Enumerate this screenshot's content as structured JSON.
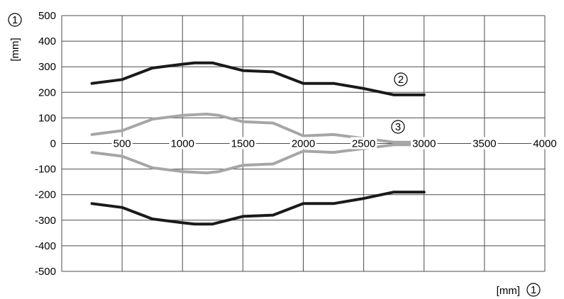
{
  "chart_data": {
    "type": "line",
    "title": "",
    "xlabel": "[mm]",
    "ylabel": "[mm]",
    "axis_marker": "1",
    "xlim": [
      0,
      4000
    ],
    "ylim": [
      -500,
      500
    ],
    "x_ticks": [
      500,
      1000,
      1500,
      2000,
      2500,
      3000,
      3500,
      4000
    ],
    "y_ticks": [
      500,
      400,
      300,
      200,
      100,
      0,
      -100,
      -200,
      -300,
      -400,
      -500
    ],
    "grid": true,
    "series": [
      {
        "name": "2",
        "color": "#1a1a1a",
        "x": [
          250,
          500,
          750,
          1000,
          1100,
          1250,
          1500,
          1750,
          2000,
          2250,
          2500,
          2750,
          3000
        ],
        "upper": [
          235,
          250,
          295,
          310,
          315,
          315,
          285,
          280,
          235,
          235,
          215,
          190,
          190
        ],
        "lower": [
          -235,
          -250,
          -295,
          -310,
          -315,
          -315,
          -285,
          -280,
          -235,
          -235,
          -215,
          -190,
          -190
        ]
      },
      {
        "name": "3",
        "color": "#a6a6a6",
        "x": [
          250,
          500,
          750,
          1000,
          1200,
          1300,
          1500,
          1750,
          2000,
          2250,
          2500,
          2750,
          3000
        ],
        "upper": [
          35,
          50,
          95,
          110,
          115,
          110,
          85,
          80,
          30,
          35,
          20,
          5,
          5
        ],
        "lower": [
          -35,
          -50,
          -95,
          -110,
          -115,
          -110,
          -85,
          -80,
          -30,
          -35,
          -20,
          -5,
          -5
        ]
      }
    ],
    "annotations": [
      "2",
      "3"
    ]
  }
}
